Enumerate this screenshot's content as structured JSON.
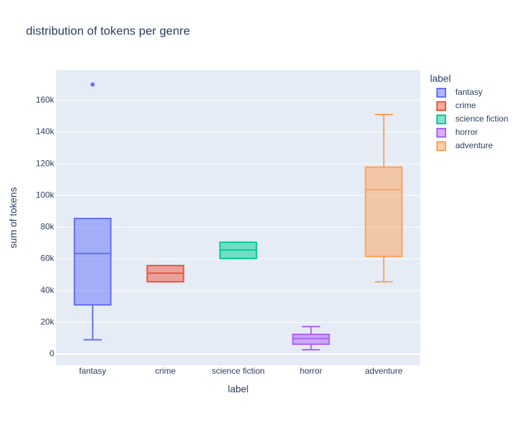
{
  "chart_data": {
    "type": "box",
    "title": "distribution of tokens per genre",
    "x_label": "label",
    "y_label": "sum of tokens",
    "legend_title": "label",
    "categories": [
      "fantasy",
      "crime",
      "science fiction",
      "horror",
      "adventure"
    ],
    "ylim": [
      -7100,
      179000
    ],
    "yticks": [
      0,
      {
        "value": 20000,
        "label": "20k"
      },
      {
        "value": 40000,
        "label": "40k"
      },
      {
        "value": 60000,
        "label": "60k"
      },
      {
        "value": 80000,
        "label": "80k"
      },
      {
        "value": 100000,
        "label": "100k"
      },
      {
        "value": 120000,
        "label": "120k"
      },
      {
        "value": 140000,
        "label": "140k"
      },
      {
        "value": 160000,
        "label": "160k"
      }
    ],
    "grid": true,
    "series": [
      {
        "name": "fantasy",
        "color": "#636efa",
        "min": 9000,
        "q1": 31000,
        "median": 63400,
        "q3": 85500,
        "max": 85500,
        "outliers": [
          170000
        ]
      },
      {
        "name": "crime",
        "color": "#EF553B",
        "min": 45600,
        "q1": 45600,
        "median": 51000,
        "q3": 55800,
        "max": 55800,
        "outliers": []
      },
      {
        "name": "science fiction",
        "color": "#00cc96",
        "min": 60300,
        "q1": 60300,
        "median": 65600,
        "q3": 70500,
        "max": 70500,
        "outliers": []
      },
      {
        "name": "horror",
        "color": "#ab63fa",
        "min": 2700,
        "q1": 6200,
        "median": 9800,
        "q3": 12400,
        "max": 17300,
        "outliers": []
      },
      {
        "name": "adventure",
        "color": "#FFA15A",
        "min": 45600,
        "q1": 61600,
        "median": 103700,
        "q3": 117900,
        "max": 151100,
        "outliers": []
      }
    ]
  }
}
